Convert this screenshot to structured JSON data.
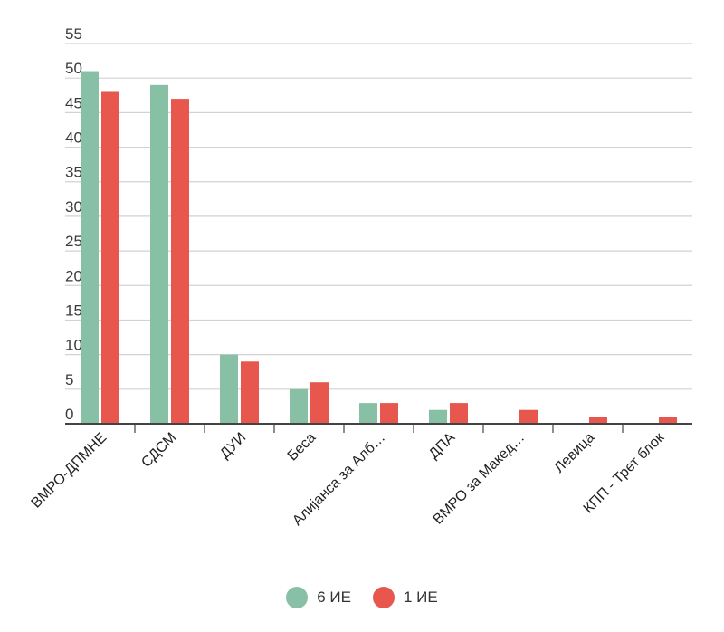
{
  "chart_data": {
    "type": "bar",
    "categories": [
      "ВМРО-ДПМНЕ",
      "СДСМ",
      "ДУИ",
      "Беса",
      "Алијанса за Алб…",
      "ДПА",
      "ВМРО за Макед…",
      "Левица",
      "КПП - Трет блок"
    ],
    "series": [
      {
        "name": "6 ИЕ",
        "color": "#88c0a6",
        "values": [
          51,
          49,
          10,
          5,
          3,
          2,
          0,
          0,
          0
        ]
      },
      {
        "name": "1 ИЕ",
        "color": "#e8574e",
        "values": [
          48,
          47,
          9,
          6,
          3,
          3,
          2,
          1,
          1
        ]
      }
    ],
    "ylim": [
      0,
      55
    ],
    "yticks": [
      0,
      5,
      10,
      15,
      20,
      25,
      30,
      35,
      40,
      45,
      50,
      55
    ],
    "grid": true,
    "legend_position": "bottom-center"
  }
}
